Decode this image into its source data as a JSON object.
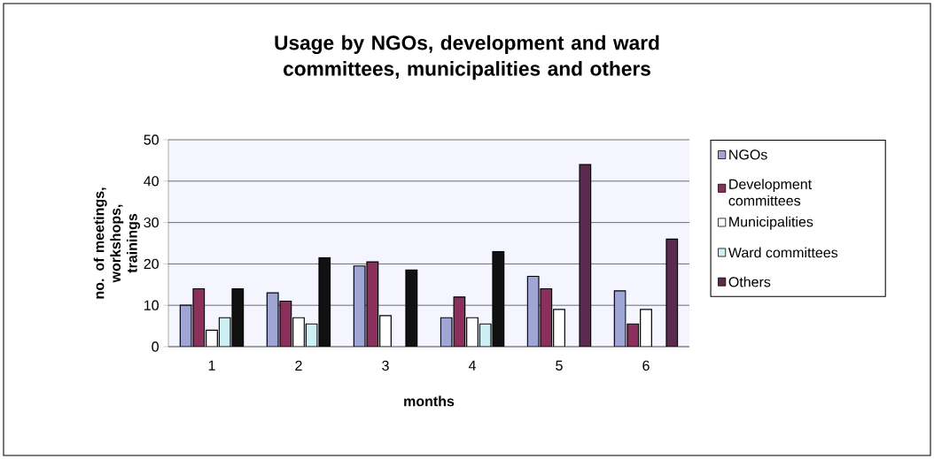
{
  "chart_data": {
    "type": "bar",
    "title": "Usage by NGOs, development and ward committees, municipalities and others",
    "xlabel": "months",
    "ylabel": "no. of meetings, workshops, trainings",
    "categories": [
      "1",
      "2",
      "3",
      "4",
      "5",
      "6"
    ],
    "series": [
      {
        "name": "NGOs",
        "color": "#9fa6d6",
        "values": [
          10,
          13,
          19.5,
          7,
          17,
          13.5
        ]
      },
      {
        "name": "Development committees",
        "color": "#8b2f5c",
        "values": [
          14,
          11,
          20.5,
          12,
          14,
          5.5
        ]
      },
      {
        "name": "Municipalities",
        "color": "#ffffff",
        "values": [
          4,
          7,
          7.5,
          7,
          9,
          9
        ]
      },
      {
        "name": "Ward committees",
        "color": "#cdeef2",
        "values": [
          7,
          5.5,
          null,
          5.5,
          null,
          null
        ]
      },
      {
        "name": "Others",
        "color": "#5c2a4e",
        "colors": [
          "#111111",
          "#111111",
          "#111111",
          "#111111",
          "#5c2a4e",
          "#5c2a4e"
        ],
        "values": [
          14,
          21.5,
          18.5,
          23,
          44,
          26
        ]
      }
    ],
    "ylim": [
      0,
      50
    ],
    "yticks": [
      0,
      10,
      20,
      30,
      40,
      50
    ],
    "grid": "y",
    "legend": "right"
  }
}
